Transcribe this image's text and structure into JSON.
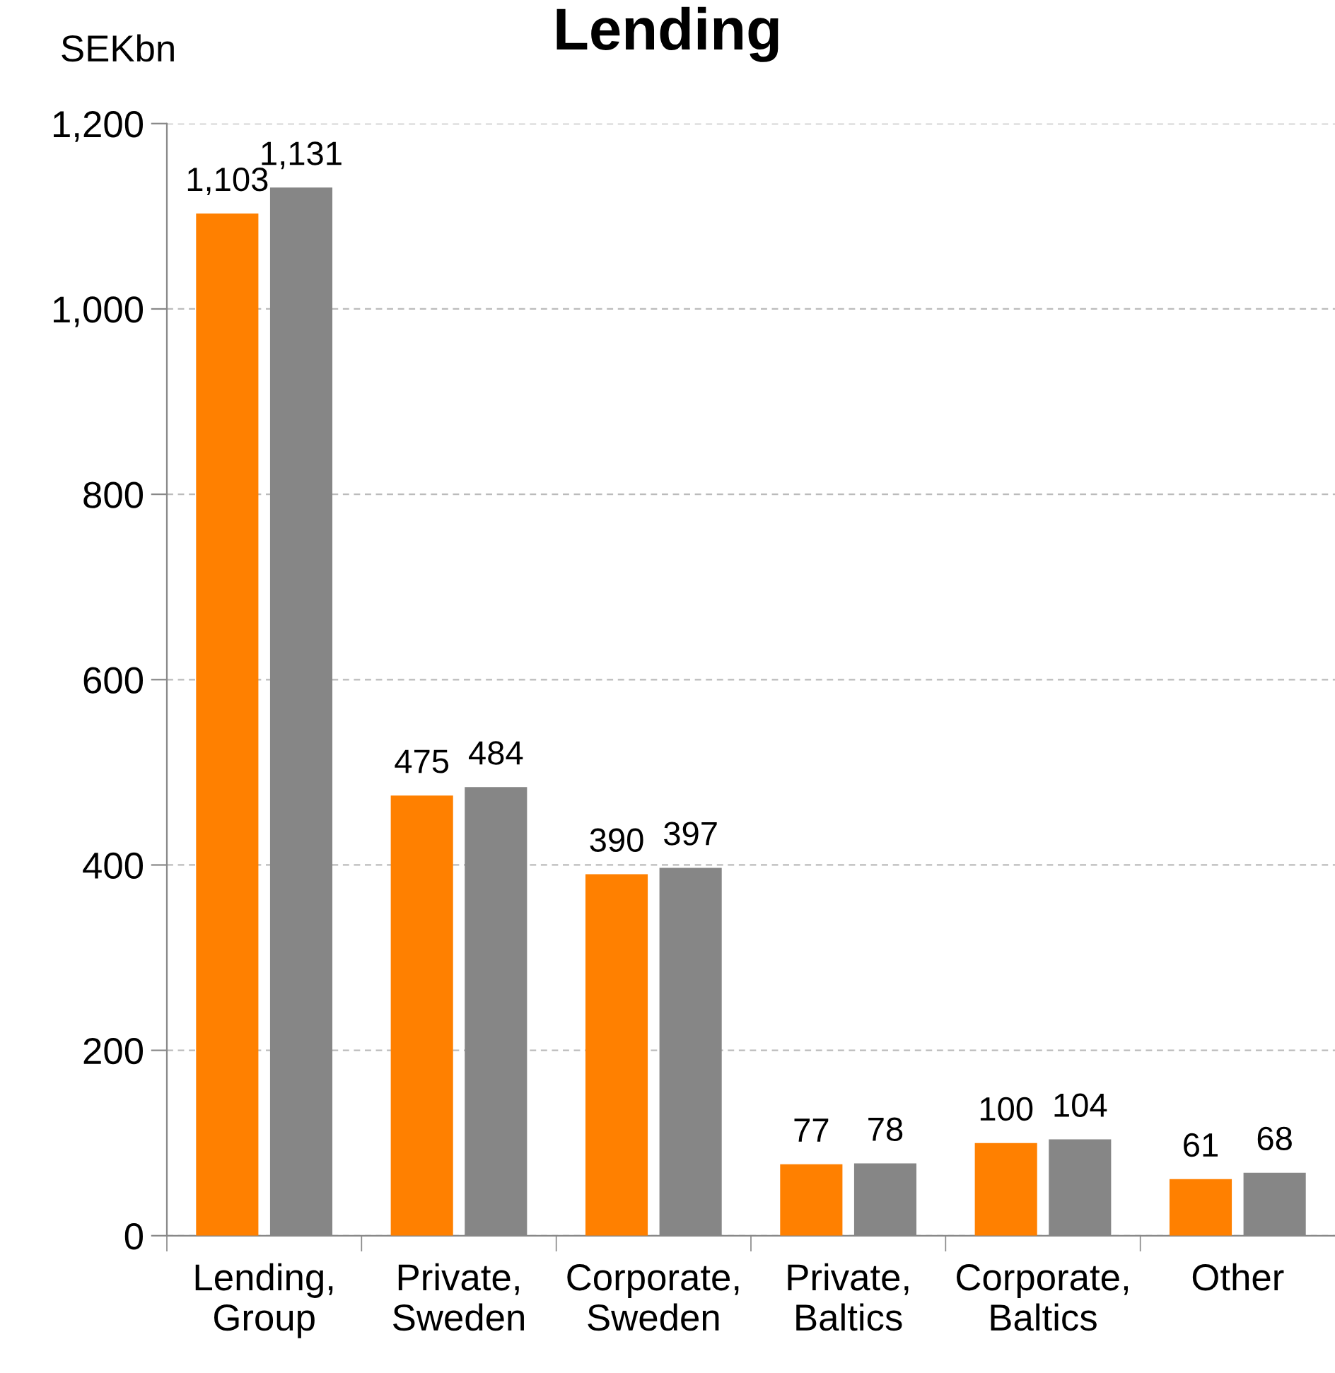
{
  "chart_data": {
    "type": "bar",
    "title": "Lending",
    "ylabel": "SEKbn",
    "categories": [
      "Lending,\nGroup",
      "Private,\nSweden",
      "Corporate,\nSweden",
      "Private,\nBaltics",
      "Corporate,\nBaltics",
      "Other"
    ],
    "series": [
      {
        "color": "#ff8000",
        "values": [
          1103,
          475,
          390,
          77,
          100,
          61
        ],
        "value_labels": [
          "1,103",
          "475",
          "390",
          "77",
          "100",
          "61"
        ]
      },
      {
        "color": "#868686",
        "values": [
          1131,
          484,
          397,
          78,
          104,
          68
        ],
        "value_labels": [
          "1,131",
          "484",
          "397",
          "78",
          "104",
          "68"
        ]
      }
    ],
    "ylim": [
      0,
      1200
    ],
    "yticks": [
      {
        "value": 0,
        "label": "0"
      },
      {
        "value": 200,
        "label": "200"
      },
      {
        "value": 400,
        "label": "400"
      },
      {
        "value": 600,
        "label": "600"
      },
      {
        "value": 800,
        "label": "800"
      },
      {
        "value": 1000,
        "label": "1,000"
      },
      {
        "value": 1200,
        "label": "1,200"
      }
    ],
    "grid": "y",
    "legend": false
  }
}
